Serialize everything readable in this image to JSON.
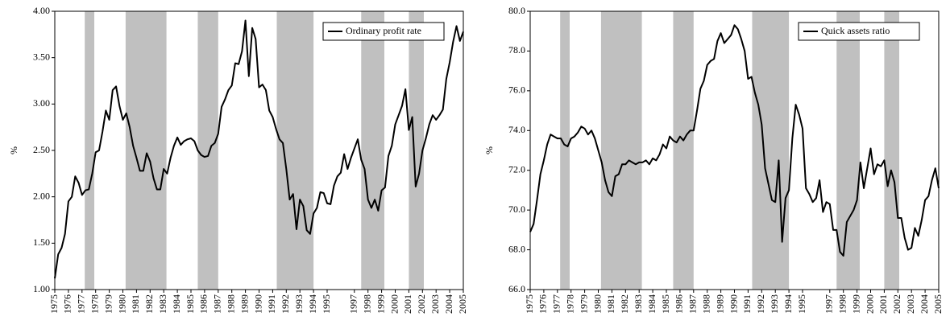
{
  "chart_data": [
    {
      "type": "line",
      "y_label": "%",
      "legend": "upper right",
      "xlim": [
        1975,
        2005
      ],
      "ylim": [
        1.0,
        4.0
      ],
      "yticks": [
        {
          "value": 1.0,
          "label": "1.00"
        },
        {
          "value": 1.5,
          "label": "1.50"
        },
        {
          "value": 2.0,
          "label": "2.00"
        },
        {
          "value": 2.5,
          "label": "2.50"
        },
        {
          "value": 3.0,
          "label": "3.00"
        },
        {
          "value": 3.5,
          "label": "3.50"
        },
        {
          "value": 4.0,
          "label": "4.00"
        }
      ],
      "xticks": [
        1975,
        1976,
        1977,
        1978,
        1979,
        1980,
        1981,
        1982,
        1983,
        1984,
        1985,
        1986,
        1987,
        1988,
        1989,
        1990,
        1991,
        1992,
        1993,
        1994,
        1995,
        1997,
        1998,
        1999,
        2000,
        2001,
        2002,
        2003,
        2004,
        2005
      ],
      "shaded_periods": [
        [
          1977.2,
          1977.9
        ],
        [
          1980.2,
          1983.2
        ],
        [
          1985.5,
          1987.0
        ],
        [
          1991.3,
          1994.0
        ],
        [
          1997.5,
          1999.2
        ],
        [
          2001.0,
          2002.1
        ]
      ],
      "shade_color": "#c0c0c0",
      "x": [
        1975,
        1975.25,
        1975.5,
        1975.75,
        1976,
        1976.25,
        1976.5,
        1976.75,
        1977,
        1977.25,
        1977.5,
        1977.75,
        1978,
        1978.25,
        1978.5,
        1978.75,
        1979,
        1979.25,
        1979.5,
        1979.75,
        1980,
        1980.25,
        1980.5,
        1980.75,
        1981,
        1981.25,
        1981.5,
        1981.75,
        1982,
        1982.25,
        1982.5,
        1982.75,
        1983,
        1983.25,
        1983.5,
        1983.75,
        1984,
        1984.25,
        1984.5,
        1984.75,
        1985,
        1985.25,
        1985.5,
        1985.75,
        1986,
        1986.25,
        1986.5,
        1986.75,
        1987,
        1987.25,
        1987.5,
        1987.75,
        1988,
        1988.25,
        1988.5,
        1988.75,
        1989,
        1989.25,
        1989.5,
        1989.75,
        1990,
        1990.25,
        1990.5,
        1990.75,
        1991,
        1991.25,
        1991.5,
        1991.75,
        1992,
        1992.25,
        1992.5,
        1992.75,
        1993,
        1993.25,
        1993.5,
        1993.75,
        1994,
        1994.25,
        1994.5,
        1994.75,
        1995,
        1995.25,
        1995.5,
        1995.75,
        1996,
        1996.25,
        1996.5,
        1996.75,
        1997,
        1997.25,
        1997.5,
        1997.75,
        1998,
        1998.25,
        1998.5,
        1998.75,
        1999,
        1999.25,
        1999.5,
        1999.75,
        2000,
        2000.25,
        2000.5,
        2000.75,
        2001,
        2001.25,
        2001.5,
        2001.75,
        2002,
        2002.25,
        2002.5,
        2002.75,
        2003,
        2003.25,
        2003.5,
        2003.75,
        2004,
        2004.25,
        2004.5,
        2004.75,
        2005
      ],
      "series": [
        {
          "name": "Ordinary profit rate",
          "color": "#000000",
          "values": [
            1.12,
            1.38,
            1.45,
            1.6,
            1.95,
            2.0,
            2.22,
            2.15,
            2.02,
            2.07,
            2.08,
            2.25,
            2.48,
            2.5,
            2.7,
            2.93,
            2.83,
            3.15,
            3.19,
            2.98,
            2.83,
            2.9,
            2.75,
            2.55,
            2.42,
            2.28,
            2.28,
            2.47,
            2.38,
            2.2,
            2.08,
            2.08,
            2.3,
            2.25,
            2.42,
            2.55,
            2.64,
            2.56,
            2.6,
            2.62,
            2.63,
            2.6,
            2.5,
            2.45,
            2.43,
            2.44,
            2.55,
            2.58,
            2.68,
            2.97,
            3.05,
            3.15,
            3.2,
            3.44,
            3.43,
            3.57,
            3.9,
            3.3,
            3.82,
            3.7,
            3.18,
            3.21,
            3.15,
            2.93,
            2.86,
            2.73,
            2.62,
            2.58,
            2.3,
            1.97,
            2.03,
            1.65,
            1.97,
            1.9,
            1.64,
            1.6,
            1.82,
            1.88,
            2.05,
            2.04,
            1.93,
            1.92,
            2.12,
            2.22,
            2.26,
            2.46,
            2.3,
            2.42,
            2.52,
            2.62,
            2.4,
            2.3,
            1.97,
            1.88,
            1.97,
            1.85,
            2.07,
            2.1,
            2.44,
            2.55,
            2.78,
            2.88,
            2.98,
            3.16,
            2.72,
            2.86,
            2.11,
            2.25,
            2.5,
            2.63,
            2.78,
            2.88,
            2.83,
            2.88,
            2.94,
            3.27,
            3.45,
            3.67,
            3.84,
            3.68,
            3.78
          ]
        }
      ]
    },
    {
      "type": "line",
      "y_label": "%",
      "legend": "upper right",
      "xlim": [
        1975,
        2005
      ],
      "ylim": [
        66.0,
        80.0
      ],
      "yticks": [
        {
          "value": 66.0,
          "label": "66.0"
        },
        {
          "value": 68.0,
          "label": "68.0"
        },
        {
          "value": 70.0,
          "label": "70.0"
        },
        {
          "value": 72.0,
          "label": "72.0"
        },
        {
          "value": 74.0,
          "label": "74.0"
        },
        {
          "value": 76.0,
          "label": "76.0"
        },
        {
          "value": 78.0,
          "label": "78.0"
        },
        {
          "value": 80.0,
          "label": "80.0"
        }
      ],
      "xticks": [
        1975,
        1976,
        1977,
        1978,
        1979,
        1980,
        1981,
        1982,
        1983,
        1984,
        1985,
        1986,
        1987,
        1988,
        1989,
        1990,
        1991,
        1992,
        1993,
        1994,
        1995,
        1997,
        1998,
        1999,
        2000,
        2001,
        2002,
        2003,
        2004,
        2005
      ],
      "shaded_periods": [
        [
          1977.2,
          1977.9
        ],
        [
          1980.2,
          1983.2
        ],
        [
          1985.5,
          1987.0
        ],
        [
          1991.3,
          1994.0
        ],
        [
          1997.5,
          1999.2
        ],
        [
          2001.0,
          2002.1
        ]
      ],
      "shade_color": "#c0c0c0",
      "x": [
        1975,
        1975.25,
        1975.5,
        1975.75,
        1976,
        1976.25,
        1976.5,
        1976.75,
        1977,
        1977.25,
        1977.5,
        1977.75,
        1978,
        1978.25,
        1978.5,
        1978.75,
        1979,
        1979.25,
        1979.5,
        1979.75,
        1980,
        1980.25,
        1980.5,
        1980.75,
        1981,
        1981.25,
        1981.5,
        1981.75,
        1982,
        1982.25,
        1982.5,
        1982.75,
        1983,
        1983.25,
        1983.5,
        1983.75,
        1984,
        1984.25,
        1984.5,
        1984.75,
        1985,
        1985.25,
        1985.5,
        1985.75,
        1986,
        1986.25,
        1986.5,
        1986.75,
        1987,
        1987.25,
        1987.5,
        1987.75,
        1988,
        1988.25,
        1988.5,
        1988.75,
        1989,
        1989.25,
        1989.5,
        1989.75,
        1990,
        1990.25,
        1990.5,
        1990.75,
        1991,
        1991.25,
        1991.5,
        1991.75,
        1992,
        1992.25,
        1992.5,
        1992.75,
        1993,
        1993.25,
        1993.5,
        1993.75,
        1994,
        1994.25,
        1994.5,
        1994.75,
        1995,
        1995.25,
        1995.5,
        1995.75,
        1996,
        1996.25,
        1996.5,
        1996.75,
        1997,
        1997.25,
        1997.5,
        1997.75,
        1998,
        1998.25,
        1998.5,
        1998.75,
        1999,
        1999.25,
        1999.5,
        1999.75,
        2000,
        2000.25,
        2000.5,
        2000.75,
        2001,
        2001.25,
        2001.5,
        2001.75,
        2002,
        2002.25,
        2002.5,
        2002.75,
        2003,
        2003.25,
        2003.5,
        2003.75,
        2004,
        2004.25,
        2004.5,
        2004.75,
        2005
      ],
      "series": [
        {
          "name": "Quick assets ratio",
          "color": "#000000",
          "values": [
            68.9,
            69.3,
            70.5,
            71.8,
            72.5,
            73.3,
            73.8,
            73.7,
            73.6,
            73.6,
            73.3,
            73.2,
            73.6,
            73.7,
            73.9,
            74.2,
            74.1,
            73.8,
            74.0,
            73.6,
            73.0,
            72.4,
            71.5,
            70.9,
            70.7,
            71.7,
            71.8,
            72.3,
            72.3,
            72.5,
            72.4,
            72.3,
            72.4,
            72.4,
            72.5,
            72.3,
            72.6,
            72.5,
            72.8,
            73.3,
            73.1,
            73.7,
            73.5,
            73.4,
            73.7,
            73.5,
            73.8,
            74.0,
            74.0,
            75.0,
            76.1,
            76.5,
            77.3,
            77.5,
            77.6,
            78.5,
            78.9,
            78.4,
            78.6,
            78.8,
            79.3,
            79.1,
            78.6,
            78.0,
            76.6,
            76.7,
            75.9,
            75.3,
            74.3,
            72.1,
            71.3,
            70.5,
            70.4,
            72.5,
            68.4,
            70.6,
            71.0,
            73.6,
            75.3,
            74.8,
            74.1,
            71.1,
            70.8,
            70.4,
            70.6,
            71.5,
            69.9,
            70.4,
            70.3,
            69.0,
            69.0,
            67.9,
            67.7,
            69.4,
            69.7,
            70.0,
            70.5,
            72.4,
            71.1,
            72.1,
            73.1,
            71.8,
            72.3,
            72.2,
            72.5,
            71.2,
            72.0,
            71.4,
            69.6,
            69.6,
            68.6,
            68.0,
            68.1,
            69.1,
            68.7,
            69.5,
            70.5,
            70.7,
            71.5,
            72.1,
            71.1
          ]
        }
      ]
    }
  ]
}
